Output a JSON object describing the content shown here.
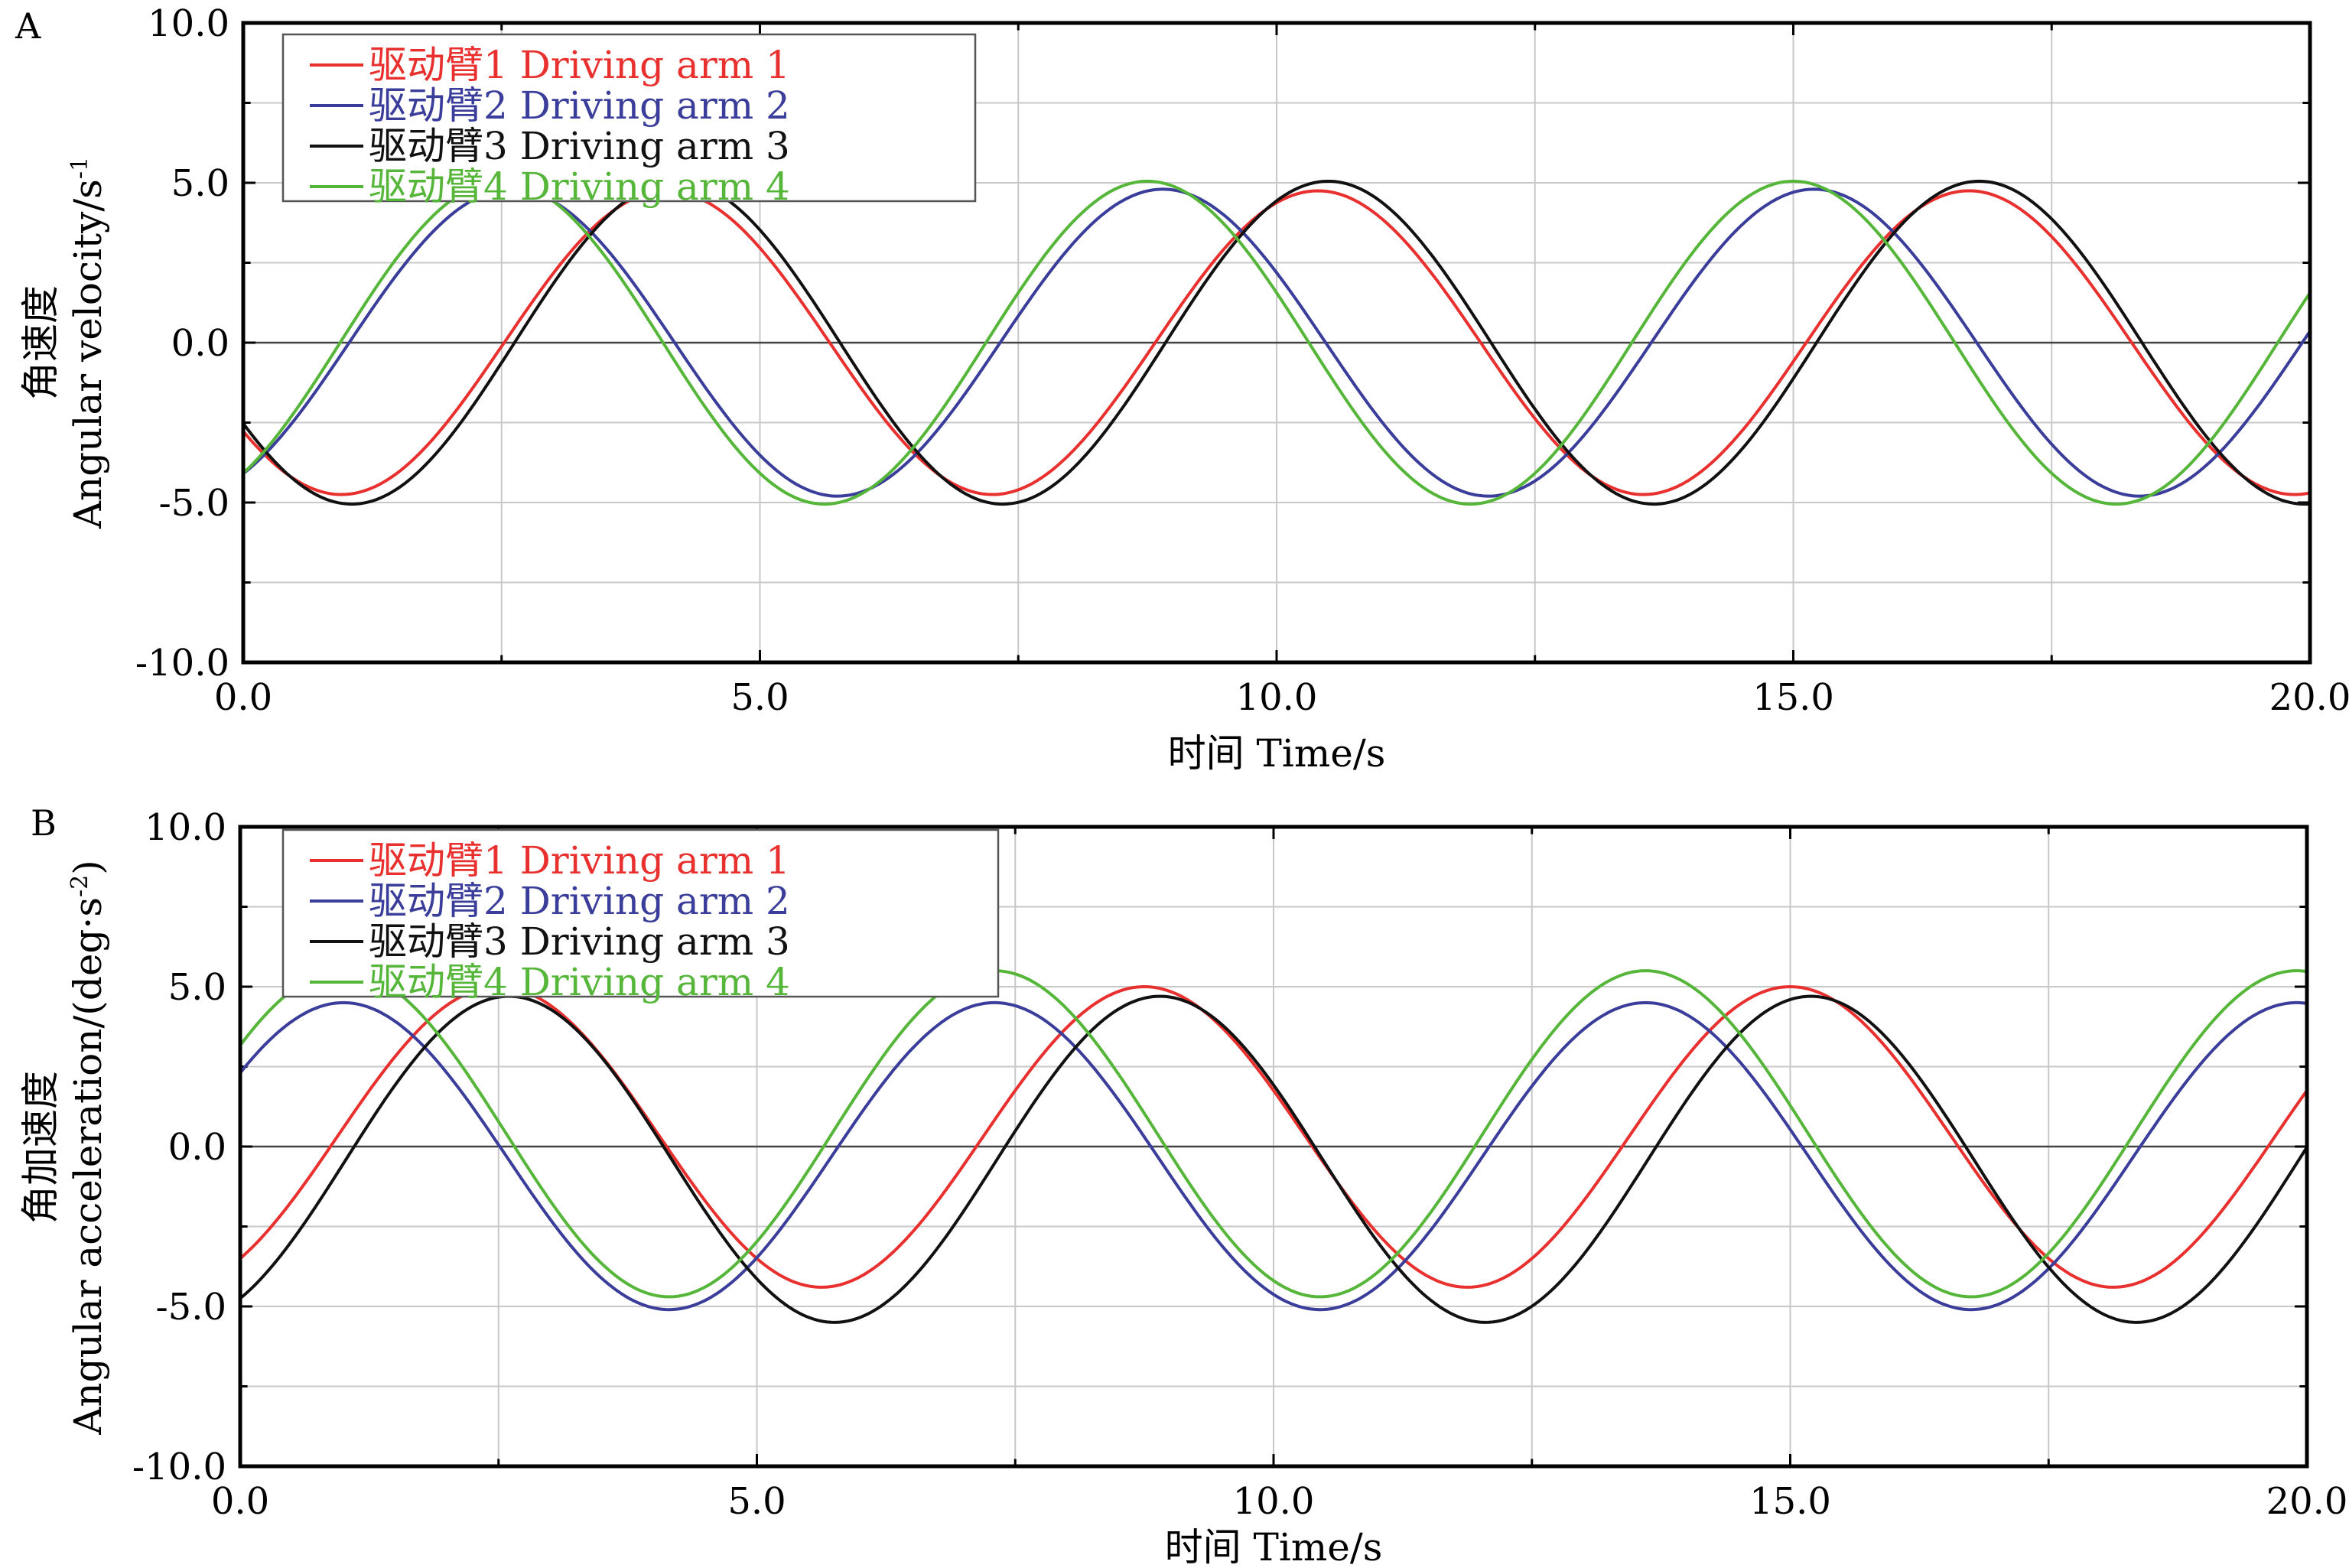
{
  "chart_data": [
    {
      "panel_label": "A",
      "type": "line",
      "xlabel": "时间 Time/s",
      "ylabel_zh": "角速度",
      "ylabel_en": "Angular velocity/s",
      "ylabel_sup": "-1",
      "xlim": [
        0,
        20
      ],
      "ylim": [
        -10,
        10
      ],
      "xticks": [
        "0.0",
        "5.0",
        "10.0",
        "15.0",
        "20.0"
      ],
      "yticks": [
        "10.0",
        "5.0",
        "0.0",
        "-5.0",
        "-10.0"
      ],
      "grid": true,
      "legend_position": "top-left",
      "series": [
        {
          "name": "驱动臂1 Driving arm 1",
          "color": "#e8312f",
          "amp": 4.75,
          "offset": 0,
          "period": 6.3,
          "peak": 4.1
        },
        {
          "name": "驱动臂2 Driving arm 2",
          "color": "#3a3d9a",
          "amp": 4.8,
          "offset": 0,
          "period": 6.3,
          "peak": 2.6
        },
        {
          "name": "驱动臂3 Driving arm 3",
          "color": "#111111",
          "amp": 5.05,
          "offset": 0,
          "period": 6.3,
          "peak": 4.2
        },
        {
          "name": "驱动臂4 Driving arm 4",
          "color": "#55b63a",
          "amp": 5.05,
          "offset": 0,
          "period": 6.25,
          "peak": 2.5
        }
      ]
    },
    {
      "panel_label": "B",
      "type": "line",
      "xlabel": "时间 Time/s",
      "ylabel_zh": "角加速度",
      "ylabel_en": "Angular acceleration/(deg·s",
      "ylabel_sup": "-2",
      "ylabel_tail": ")",
      "xlim": [
        0,
        20
      ],
      "ylim": [
        -10,
        10
      ],
      "xticks": [
        "0.0",
        "5.0",
        "10.0",
        "15.0",
        "20.0"
      ],
      "yticks": [
        "10.0",
        "5.0",
        "0.0",
        "-5.0",
        "-10.0"
      ],
      "grid": true,
      "legend_position": "top-left",
      "series": [
        {
          "name": "驱动臂1 Driving arm 1",
          "color": "#e8312f",
          "amp": 4.7,
          "offset": 0.3,
          "period": 6.25,
          "peak": 2.5
        },
        {
          "name": "驱动臂2 Driving arm 2",
          "color": "#3a3d9a",
          "amp": 4.8,
          "offset": -0.3,
          "period": 6.3,
          "peak": 1.0
        },
        {
          "name": "驱动臂3 Driving arm 3",
          "color": "#111111",
          "amp": 5.1,
          "offset": -0.4,
          "period": 6.3,
          "peak": 2.6
        },
        {
          "name": "驱动臂4 Driving arm 4",
          "color": "#55b63a",
          "amp": 5.1,
          "offset": 0.4,
          "period": 6.3,
          "peak": 1.0
        }
      ]
    }
  ]
}
